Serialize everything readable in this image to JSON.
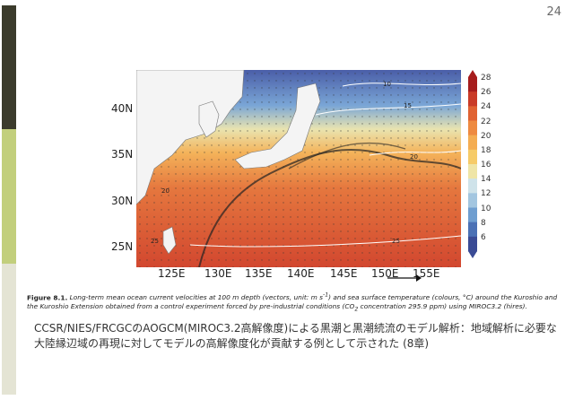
{
  "page": {
    "number": "24"
  },
  "map": {
    "lat_labels": [
      "40N",
      "35N",
      "30N",
      "25N"
    ],
    "lon_labels": [
      "125E",
      "130E",
      "135E",
      "140E",
      "145E",
      "150E",
      "155E"
    ],
    "contour_labels": [
      "10",
      "15",
      "20",
      "20",
      "25",
      "25"
    ]
  },
  "colorbar": {
    "ticks": [
      "28",
      "26",
      "24",
      "22",
      "20",
      "18",
      "16",
      "14",
      "12",
      "10",
      "8",
      "6"
    ],
    "colors": [
      "#a61c1c",
      "#c93a27",
      "#e06232",
      "#ee8a40",
      "#f4ad52",
      "#f6cb68",
      "#efe5a6",
      "#cfe3ea",
      "#a3c6e0",
      "#6f9ed0",
      "#4b71b5",
      "#3a4b95"
    ]
  },
  "caption": {
    "label": "Figure 8.1.",
    "text_a": " Long-term mean ocean current velocities at 100 m depth (vectors, unit: m s",
    "sup_a": "-1",
    "text_b": ") and sea surface temperature (colours, °C) around the Kuroshio and the Kuroshio Extension obtained from a control experiment forced by pre-industrial conditions (CO",
    "sub_b": "2",
    "text_c": " concentration 295.9 ppm) using MIROC3.2 (hires)."
  },
  "description": {
    "text": "CCSR/NIES/FRCGCのAOGCM(MIROC3.2高解像度)による黒潮と黒潮続流のモデル解析：地域解析に必要な大陸縁辺域の再現に対してモデルの高解像度化が貢献する例として示された (8章)"
  }
}
